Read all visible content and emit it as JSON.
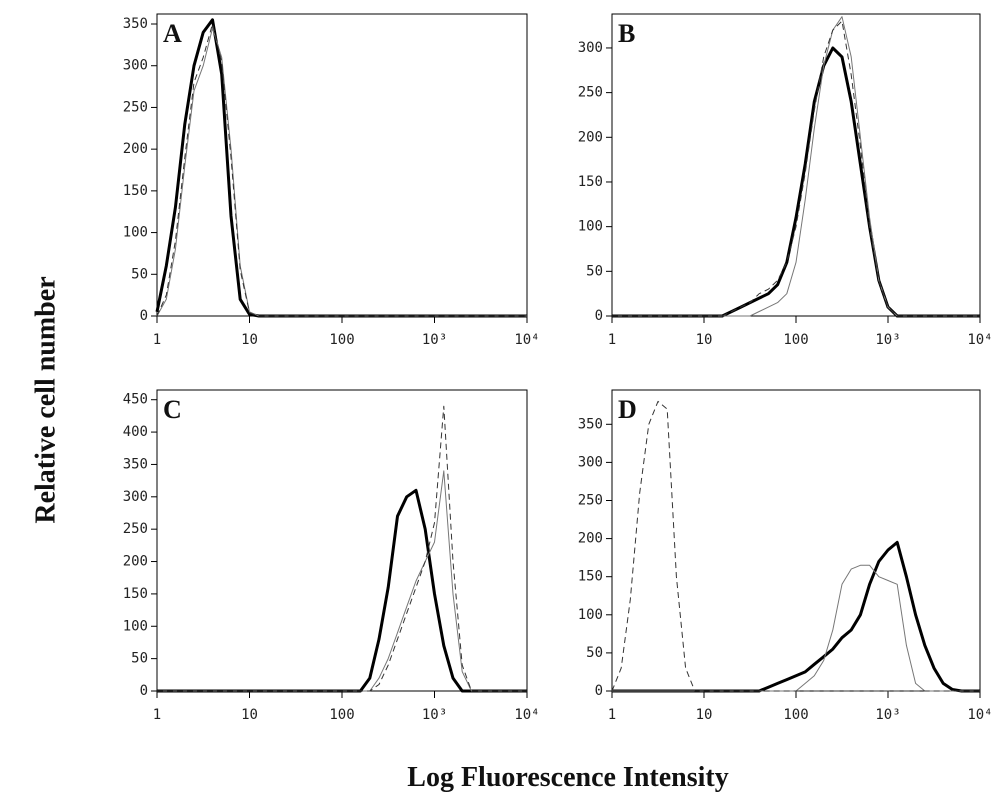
{
  "y_label": "Relative cell number",
  "x_label": "Log Fluorescence Intensity",
  "chart_data": [
    {
      "type": "line",
      "label": "A",
      "xscale": "log",
      "xlim": [
        1,
        10000
      ],
      "xticks": [
        1,
        10,
        100,
        {
          "value": 1000,
          "label": "10³"
        },
        {
          "value": 10000,
          "label": "10⁴"
        }
      ],
      "ylim": [
        0,
        362
      ],
      "yticks": [
        0,
        50,
        100,
        150,
        200,
        250,
        300,
        350
      ],
      "x": [
        1,
        1.26,
        1.58,
        2,
        2.51,
        3.16,
        3.98,
        5.01,
        6.31,
        7.94,
        10,
        12.6,
        15.8,
        20,
        25.1,
        31.6,
        39.8,
        50.1,
        63.1,
        79.4,
        100,
        126,
        158,
        200,
        251,
        316,
        398,
        501,
        631,
        794,
        1000,
        1259,
        1585,
        1995,
        2512,
        3162,
        3981,
        5012,
        6310,
        7943,
        10000
      ],
      "series": [
        {
          "color": "#000000",
          "width": 3,
          "dash": false,
          "values": [
            5,
            60,
            130,
            230,
            300,
            340,
            355,
            290,
            120,
            20,
            2,
            0,
            0,
            0,
            0,
            0,
            0,
            0,
            0,
            0,
            0,
            0,
            0,
            0,
            0,
            0,
            0,
            0,
            0,
            0,
            0,
            0,
            0,
            0,
            0,
            0,
            0,
            0,
            0,
            0,
            0
          ]
        },
        {
          "color": "#777777",
          "width": 1,
          "dash": false,
          "values": [
            0,
            20,
            80,
            180,
            270,
            300,
            345,
            310,
            200,
            60,
            5,
            0,
            0,
            0,
            0,
            0,
            0,
            0,
            0,
            0,
            0,
            0,
            0,
            0,
            0,
            0,
            0,
            0,
            0,
            0,
            0,
            0,
            0,
            0,
            0,
            0,
            0,
            0,
            0,
            0,
            0
          ]
        },
        {
          "color": "#333333",
          "width": 1,
          "dash": true,
          "values": [
            0,
            25,
            90,
            190,
            280,
            310,
            350,
            305,
            190,
            55,
            4,
            0,
            0,
            0,
            0,
            0,
            0,
            0,
            0,
            0,
            0,
            0,
            0,
            0,
            0,
            0,
            0,
            0,
            0,
            0,
            0,
            0,
            0,
            0,
            0,
            0,
            0,
            0,
            0,
            0,
            0
          ]
        }
      ]
    },
    {
      "type": "line",
      "label": "B",
      "xscale": "log",
      "xlim": [
        1,
        10000
      ],
      "xticks": [
        1,
        10,
        100,
        {
          "value": 1000,
          "label": "10³"
        },
        {
          "value": 10000,
          "label": "10⁴"
        }
      ],
      "ylim": [
        0,
        338
      ],
      "yticks": [
        0,
        50,
        100,
        150,
        200,
        250,
        300
      ],
      "x": [
        1,
        1.26,
        1.58,
        2,
        2.51,
        3.16,
        3.98,
        5.01,
        6.31,
        7.94,
        10,
        12.6,
        15.8,
        20,
        25.1,
        31.6,
        39.8,
        50.1,
        63.1,
        79.4,
        100,
        126,
        158,
        200,
        251,
        316,
        398,
        501,
        631,
        794,
        1000,
        1259,
        1585,
        1995,
        2512,
        3162,
        3981,
        5012,
        6310,
        7943,
        10000
      ],
      "series": [
        {
          "color": "#000000",
          "width": 3,
          "dash": false,
          "values": [
            0,
            0,
            0,
            0,
            0,
            0,
            0,
            0,
            0,
            0,
            0,
            0,
            0,
            5,
            10,
            15,
            20,
            25,
            35,
            60,
            110,
            170,
            240,
            280,
            300,
            290,
            240,
            170,
            100,
            40,
            10,
            0,
            0,
            0,
            0,
            0,
            0,
            0,
            0,
            0,
            0
          ]
        },
        {
          "color": "#777777",
          "width": 1,
          "dash": false,
          "values": [
            0,
            0,
            0,
            0,
            0,
            0,
            0,
            0,
            0,
            0,
            0,
            0,
            0,
            0,
            0,
            0,
            5,
            10,
            15,
            25,
            60,
            130,
            210,
            280,
            320,
            335,
            290,
            200,
            110,
            40,
            10,
            0,
            0,
            0,
            0,
            0,
            0,
            0,
            0,
            0,
            0
          ]
        },
        {
          "color": "#333333",
          "width": 1,
          "dash": true,
          "values": [
            0,
            0,
            0,
            0,
            0,
            0,
            0,
            0,
            0,
            0,
            0,
            0,
            0,
            5,
            10,
            15,
            25,
            30,
            40,
            60,
            100,
            160,
            230,
            290,
            320,
            330,
            270,
            190,
            100,
            40,
            10,
            0,
            0,
            0,
            0,
            0,
            0,
            0,
            0,
            0,
            0
          ]
        }
      ]
    },
    {
      "type": "line",
      "label": "C",
      "xscale": "log",
      "xlim": [
        1,
        10000
      ],
      "xticks": [
        1,
        10,
        100,
        {
          "value": 1000,
          "label": "10³"
        },
        {
          "value": 10000,
          "label": "10⁴"
        }
      ],
      "ylim": [
        0,
        465
      ],
      "yticks": [
        0,
        50,
        100,
        150,
        200,
        250,
        300,
        350,
        400,
        450
      ],
      "x": [
        1,
        1.26,
        1.58,
        2,
        2.51,
        3.16,
        3.98,
        5.01,
        6.31,
        7.94,
        10,
        12.6,
        15.8,
        20,
        25.1,
        31.6,
        39.8,
        50.1,
        63.1,
        79.4,
        100,
        126,
        158,
        200,
        251,
        316,
        398,
        501,
        631,
        794,
        1000,
        1259,
        1585,
        1995,
        2512,
        3162,
        3981,
        5012,
        6310,
        7943,
        10000
      ],
      "series": [
        {
          "color": "#000000",
          "width": 3,
          "dash": false,
          "values": [
            0,
            0,
            0,
            0,
            0,
            0,
            0,
            0,
            0,
            0,
            0,
            0,
            0,
            0,
            0,
            0,
            0,
            0,
            0,
            0,
            0,
            0,
            0,
            20,
            80,
            160,
            270,
            300,
            310,
            250,
            150,
            70,
            20,
            0,
            0,
            0,
            0,
            0,
            0,
            0,
            0
          ]
        },
        {
          "color": "#777777",
          "width": 1,
          "dash": false,
          "values": [
            0,
            0,
            0,
            0,
            0,
            0,
            0,
            0,
            0,
            0,
            0,
            0,
            0,
            0,
            0,
            0,
            0,
            0,
            0,
            0,
            0,
            0,
            0,
            0,
            20,
            50,
            90,
            130,
            170,
            200,
            230,
            340,
            150,
            30,
            0,
            0,
            0,
            0,
            0,
            0,
            0
          ]
        },
        {
          "color": "#333333",
          "width": 1,
          "dash": true,
          "values": [
            0,
            0,
            0,
            0,
            0,
            0,
            0,
            0,
            0,
            0,
            0,
            0,
            0,
            0,
            0,
            0,
            0,
            0,
            0,
            0,
            0,
            0,
            0,
            0,
            10,
            40,
            80,
            120,
            160,
            200,
            260,
            440,
            200,
            40,
            0,
            0,
            0,
            0,
            0,
            0,
            0
          ]
        }
      ]
    },
    {
      "type": "line",
      "label": "D",
      "xscale": "log",
      "xlim": [
        1,
        10000
      ],
      "xticks": [
        1,
        10,
        100,
        {
          "value": 1000,
          "label": "10³"
        },
        {
          "value": 10000,
          "label": "10⁴"
        }
      ],
      "ylim": [
        0,
        395
      ],
      "yticks": [
        0,
        50,
        100,
        150,
        200,
        250,
        300,
        350
      ],
      "x": [
        1,
        1.26,
        1.58,
        2,
        2.51,
        3.16,
        3.98,
        5.01,
        6.31,
        7.94,
        10,
        12.6,
        15.8,
        20,
        25.1,
        31.6,
        39.8,
        50.1,
        63.1,
        79.4,
        100,
        126,
        158,
        200,
        251,
        316,
        398,
        501,
        631,
        794,
        1000,
        1259,
        1585,
        1995,
        2512,
        3162,
        3981,
        5012,
        6310,
        7943,
        10000
      ],
      "series": [
        {
          "color": "#000000",
          "width": 3,
          "dash": false,
          "values": [
            0,
            0,
            0,
            0,
            0,
            0,
            0,
            0,
            0,
            0,
            0,
            0,
            0,
            0,
            0,
            0,
            0,
            5,
            10,
            15,
            20,
            25,
            35,
            45,
            55,
            70,
            80,
            100,
            140,
            170,
            185,
            195,
            150,
            100,
            60,
            30,
            10,
            2,
            0,
            0,
            0
          ]
        },
        {
          "color": "#777777",
          "width": 1,
          "dash": false,
          "values": [
            0,
            0,
            0,
            0,
            0,
            0,
            0,
            0,
            0,
            0,
            0,
            0,
            0,
            0,
            0,
            0,
            0,
            0,
            0,
            0,
            0,
            10,
            20,
            40,
            80,
            140,
            160,
            165,
            165,
            150,
            145,
            140,
            60,
            10,
            0,
            0,
            0,
            0,
            0,
            0,
            0
          ]
        },
        {
          "color": "#333333",
          "width": 1,
          "dash": true,
          "values": [
            0,
            30,
            120,
            260,
            350,
            380,
            370,
            150,
            30,
            0,
            0,
            0,
            0,
            0,
            0,
            0,
            0,
            0,
            0,
            0,
            0,
            0,
            0,
            0,
            0,
            0,
            0,
            0,
            0,
            0,
            0,
            0,
            0,
            0,
            0,
            0,
            0,
            0,
            0,
            0,
            0
          ]
        }
      ]
    }
  ]
}
